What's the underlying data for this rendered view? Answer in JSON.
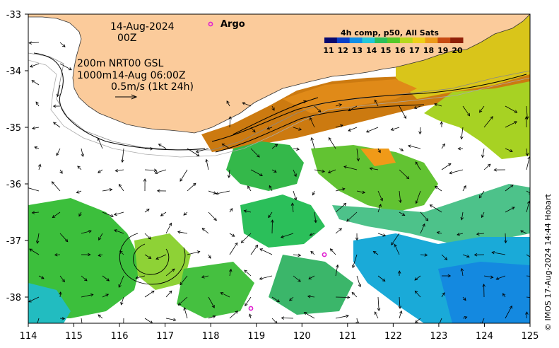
{
  "map": {
    "date_label": "14-Aug-2024",
    "time_label": "00Z",
    "argo_label": "Argo",
    "depth_line": "200m  NRT00 GSL",
    "isobath_line": "1000m14-Aug 06:00Z",
    "scale_label": "0.5m/s (1kt 24h)",
    "colorbar_title": "4h comp, p50, All Sats",
    "colorbar_ticks": [
      "11",
      "12",
      "13",
      "14",
      "15",
      "16",
      "17",
      "18",
      "19",
      "20"
    ],
    "colorbar_colors": [
      "#08086e",
      "#0a3fc8",
      "#0f8ee6",
      "#22c7d9",
      "#2bbf5a",
      "#56c828",
      "#b7d81c",
      "#eecf18",
      "#ec9a1a",
      "#c84a12",
      "#8f1f08"
    ],
    "credit": "© IMOS 17-Aug-2024 14:44 Hobart",
    "land_color": "#fbcb9b",
    "argo_color": "#e020d0",
    "x_ticks": [
      "114",
      "115",
      "116",
      "117",
      "118",
      "119",
      "120",
      "121",
      "122",
      "123",
      "124",
      "125"
    ],
    "y_ticks": [
      "-33",
      "-34",
      "-35",
      "-36",
      "-37",
      "-38"
    ]
  }
}
